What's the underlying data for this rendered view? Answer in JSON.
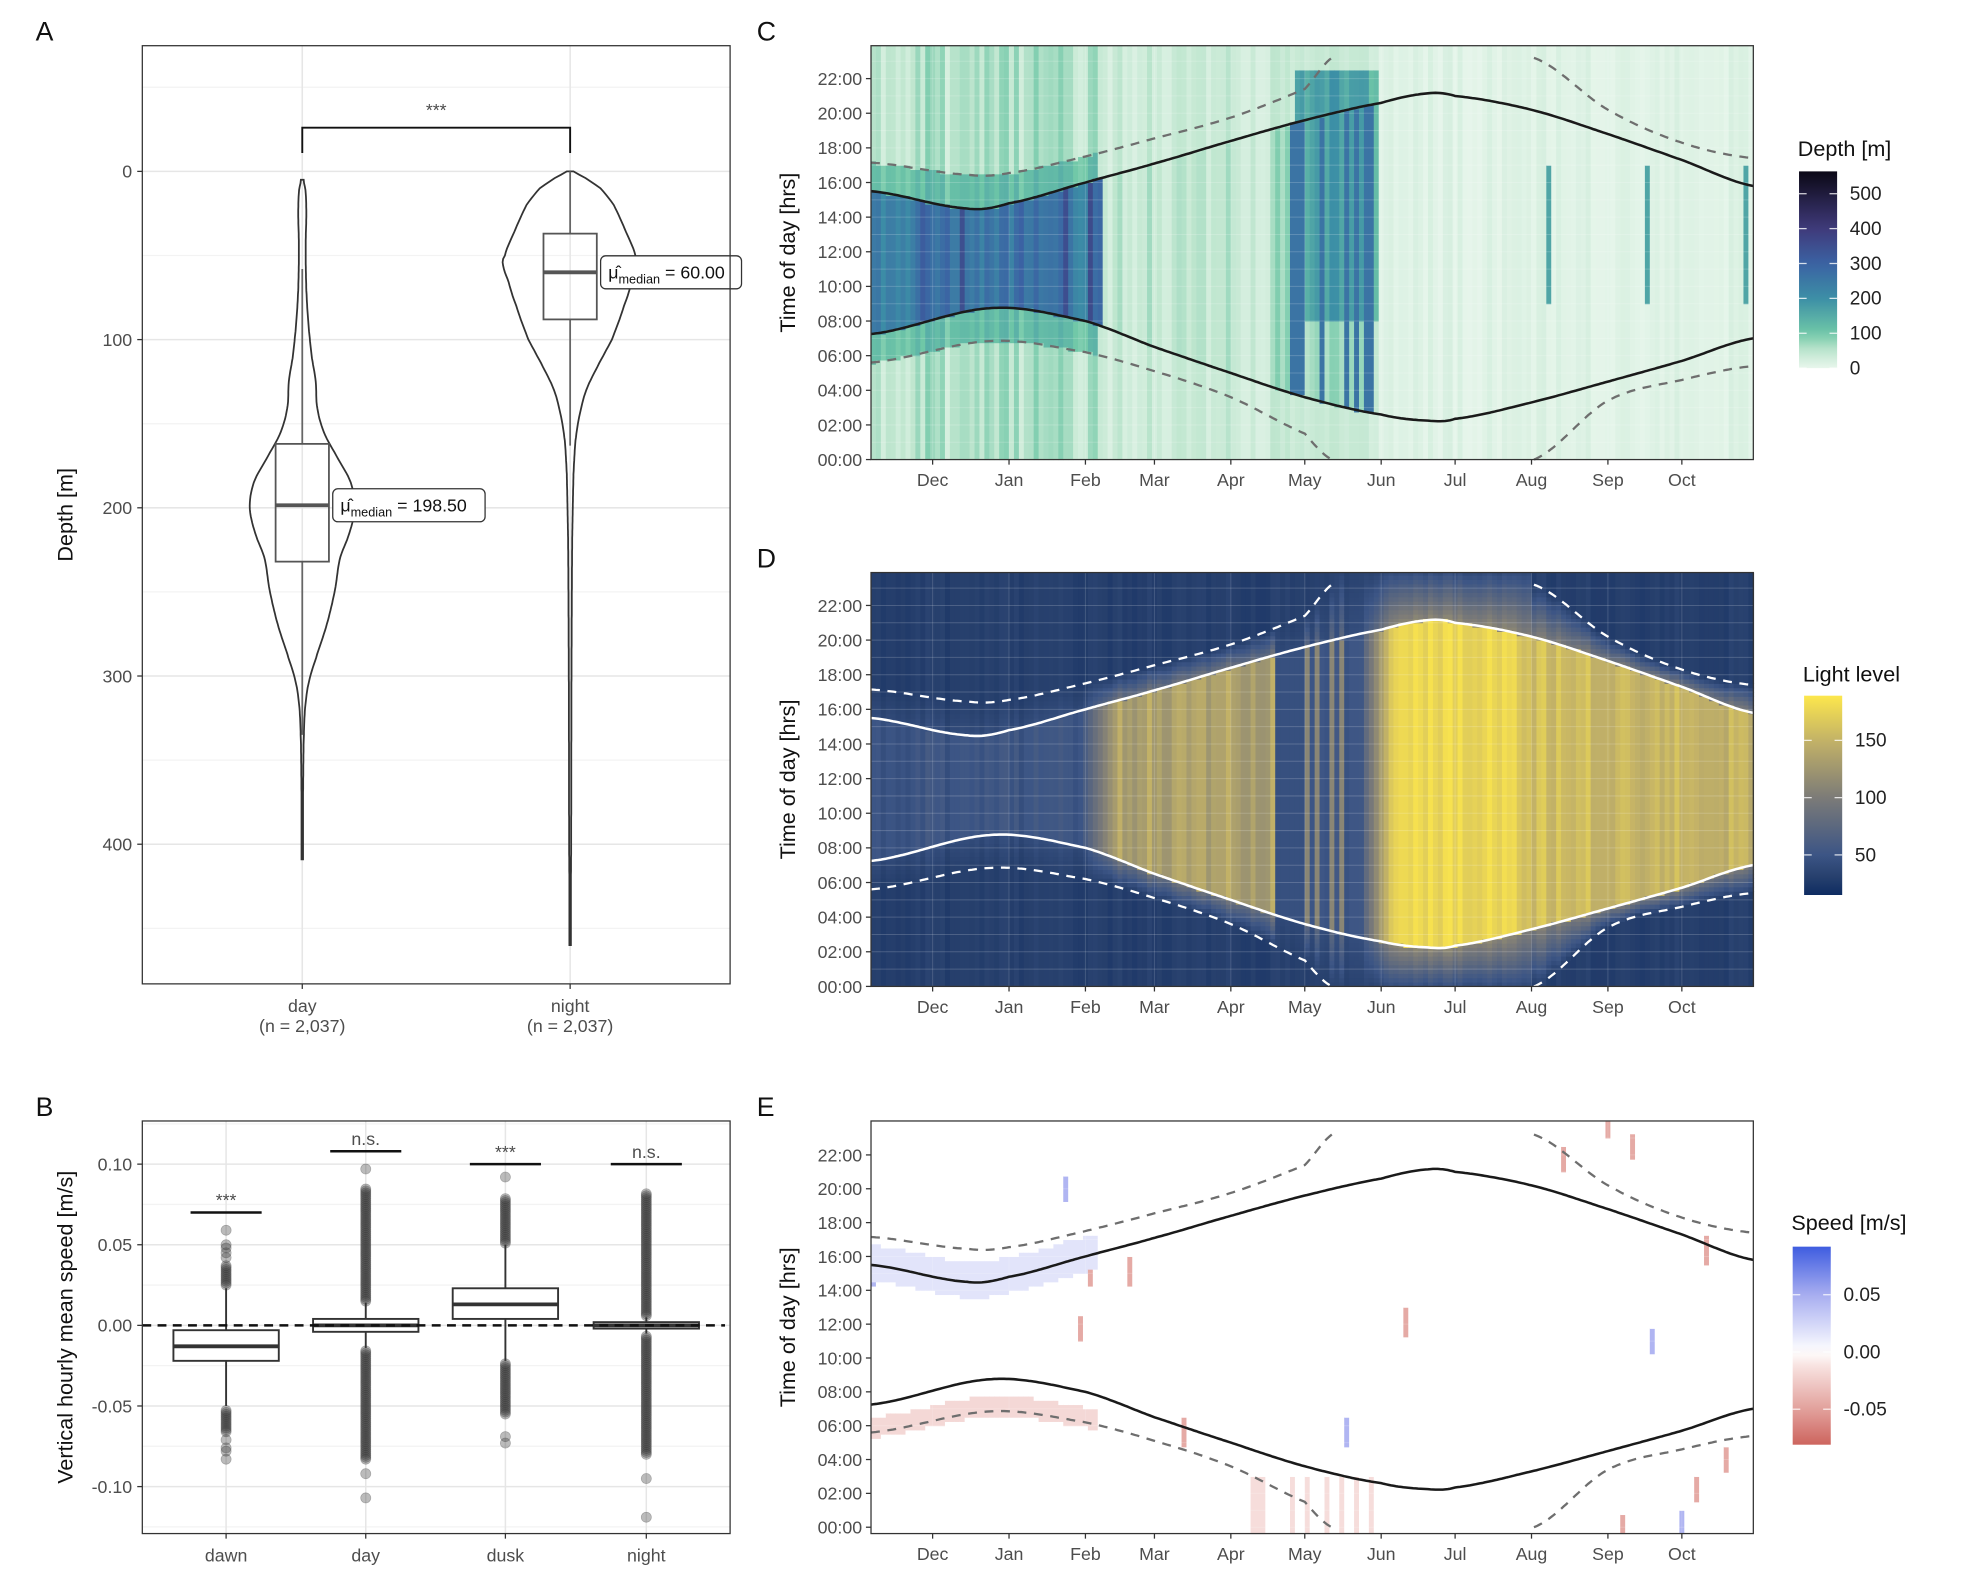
{
  "panel_labels": [
    "A",
    "B",
    "C",
    "D",
    "E"
  ],
  "sun_curves": {
    "sunset": [
      [
        "11-06",
        15.5
      ],
      [
        "12-15",
        14.5
      ],
      [
        "01-01",
        14.8
      ],
      [
        "02-01",
        16.0
      ],
      [
        "03-01",
        17.1
      ],
      [
        "04-01",
        18.4
      ],
      [
        "05-01",
        19.6
      ],
      [
        "06-01",
        20.6
      ],
      [
        "06-20",
        21.15
      ],
      [
        "07-01",
        21.0
      ],
      [
        "08-01",
        20.2
      ],
      [
        "09-01",
        18.8
      ],
      [
        "10-01",
        17.3
      ],
      [
        "10-30",
        15.8
      ]
    ],
    "sunrise": [
      [
        "11-06",
        7.25
      ],
      [
        "12-25",
        8.75
      ],
      [
        "02-01",
        8.0
      ],
      [
        "03-01",
        6.5
      ],
      [
        "04-01",
        5.0
      ],
      [
        "05-01",
        3.6
      ],
      [
        "06-01",
        2.6
      ],
      [
        "06-20",
        2.25
      ],
      [
        "07-01",
        2.35
      ],
      [
        "08-01",
        3.3
      ],
      [
        "09-01",
        4.5
      ],
      [
        "10-01",
        5.7
      ],
      [
        "10-30",
        7.0
      ]
    ],
    "dusk": [
      [
        [
          "11-06",
          17.15
        ],
        [
          "12-15",
          16.45
        ],
        [
          "01-01",
          16.55
        ],
        [
          "02-01",
          17.5
        ],
        [
          "03-01",
          18.55
        ],
        [
          "04-01",
          19.75
        ],
        [
          "05-01",
          21.4
        ],
        [
          "05-13",
          23.3
        ]
      ],
      [
        [
          "08-02",
          23.2
        ],
        [
          "09-01",
          20.2
        ],
        [
          "10-01",
          18.3
        ],
        [
          "10-30",
          17.4
        ]
      ]
    ],
    "dawn": [
      [
        [
          "11-06",
          5.6
        ],
        [
          "12-25",
          6.85
        ],
        [
          "02-01",
          6.2
        ],
        [
          "03-01",
          5.1
        ],
        [
          "04-01",
          3.6
        ],
        [
          "05-01",
          1.5
        ],
        [
          "05-12",
          0.0
        ]
      ],
      [
        [
          "08-02",
          0.0
        ],
        [
          "09-01",
          3.4
        ],
        [
          "10-01",
          4.6
        ],
        [
          "10-30",
          5.4
        ]
      ]
    ]
  },
  "chart_data": [
    {
      "panel": "A",
      "type": "violin",
      "ylabel": "Depth [m]",
      "y_reversed": true,
      "ylim": [
        -75,
        483
      ],
      "yticks": [
        "0",
        "100",
        "200",
        "300",
        "400"
      ],
      "grid": true,
      "significance": {
        "label": "***",
        "between": [
          "day",
          "night"
        ]
      },
      "groups": [
        {
          "name": "day",
          "n_label": "(n = 2,037)",
          "box": {
            "q1": 162,
            "median": 198.5,
            "q3": 232,
            "whisker_top": 58,
            "whisker_bottom": 335
          },
          "range": [
            5,
            410
          ],
          "density": [
            [
              5,
              0.02
            ],
            [
              12,
              0.05
            ],
            [
              25,
              0.06
            ],
            [
              45,
              0.05
            ],
            [
              70,
              0.06
            ],
            [
              90,
              0.09
            ],
            [
              110,
              0.14
            ],
            [
              125,
              0.2
            ],
            [
              140,
              0.22
            ],
            [
              155,
              0.32
            ],
            [
              170,
              0.52
            ],
            [
              185,
              0.72
            ],
            [
              200,
              0.78
            ],
            [
              215,
              0.7
            ],
            [
              230,
              0.56
            ],
            [
              250,
              0.48
            ],
            [
              270,
              0.36
            ],
            [
              290,
              0.2
            ],
            [
              305,
              0.09
            ],
            [
              320,
              0.04
            ],
            [
              340,
              0.02
            ],
            [
              380,
              0.01
            ],
            [
              410,
              0.005
            ]
          ],
          "median_label": {
            "symbol": "μ̂",
            "subscript": "median",
            "value": " = 198.50"
          }
        },
        {
          "name": "night",
          "n_label": "(n = 2,037)",
          "box": {
            "q1": 37,
            "median": 60,
            "q3": 88,
            "whisker_top": 0,
            "whisker_bottom": 163
          },
          "range": [
            0,
            460
          ],
          "density": [
            [
              0,
              0.05
            ],
            [
              3,
              0.2
            ],
            [
              10,
              0.45
            ],
            [
              20,
              0.65
            ],
            [
              35,
              0.82
            ],
            [
              50,
              0.97
            ],
            [
              55,
              1.0
            ],
            [
              65,
              0.92
            ],
            [
              80,
              0.8
            ],
            [
              100,
              0.62
            ],
            [
              115,
              0.42
            ],
            [
              130,
              0.24
            ],
            [
              145,
              0.14
            ],
            [
              160,
              0.08
            ],
            [
              180,
              0.05
            ],
            [
              220,
              0.03
            ],
            [
              300,
              0.02
            ],
            [
              400,
              0.015
            ],
            [
              460,
              0.005
            ]
          ],
          "median_label": {
            "symbol": "μ̂",
            "subscript": "median",
            "value": " = 60.00"
          }
        }
      ]
    },
    {
      "panel": "B",
      "type": "box",
      "ylabel": "Vertical hourly mean speed [m/s]",
      "ylim": [
        -0.128,
        0.127
      ],
      "yticks": [
        [
          "-0.10",
          -0.1
        ],
        [
          "-0.05",
          -0.05
        ],
        [
          "0.00",
          0
        ],
        [
          "0.05",
          0.05
        ],
        [
          "0.10",
          0.1
        ]
      ],
      "reference_line": {
        "value": 0,
        "style": "dashed"
      },
      "grid": true,
      "groups": [
        {
          "name": "dawn",
          "q1": -0.022,
          "median": -0.013,
          "q3": -0.003,
          "whisker_low": -0.05,
          "whisker_high": 0.023,
          "outlier_ranges": [
            [
              0.025,
              0.038
            ],
            [
              -0.066,
              -0.052
            ]
          ],
          "outliers": [
            0.042,
            0.045,
            0.048,
            0.05,
            0.059,
            -0.071,
            -0.076,
            -0.078,
            -0.083
          ],
          "significance": {
            "label": "***",
            "y": 0.07
          }
        },
        {
          "name": "day",
          "q1": -0.004,
          "median": 0.0,
          "q3": 0.004,
          "whisker_low": -0.014,
          "whisker_high": 0.014,
          "outlier_ranges": [
            [
              0.015,
              0.085
            ],
            [
              -0.083,
              -0.015
            ]
          ],
          "outliers": [
            0.097,
            -0.092,
            -0.107
          ],
          "significance": {
            "label": "n.s.",
            "y": 0.108
          }
        },
        {
          "name": "dusk",
          "q1": 0.004,
          "median": 0.013,
          "q3": 0.023,
          "whisker_low": -0.022,
          "whisker_high": 0.05,
          "outlier_ranges": [
            [
              0.051,
              0.079
            ],
            [
              -0.055,
              -0.023
            ]
          ],
          "outliers": [
            0.092,
            -0.069,
            -0.073
          ],
          "significance": {
            "label": "***",
            "y": 0.1
          }
        },
        {
          "name": "night",
          "q1": -0.002,
          "median": 0.0,
          "q3": 0.002,
          "whisker_low": -0.005,
          "whisker_high": 0.005,
          "outlier_ranges": [
            [
              0.006,
              0.082
            ],
            [
              -0.08,
              -0.006
            ]
          ],
          "outliers": [
            -0.095,
            -0.119
          ],
          "significance": {
            "label": "n.s.",
            "y": 0.1
          }
        }
      ]
    },
    {
      "panel": "C",
      "type": "heatmap",
      "ylabel": "Time of day [hrs]",
      "x_range": [
        "11-06",
        "10-30"
      ],
      "xticks": [
        [
          "Dec",
          "12-01"
        ],
        [
          "Jan",
          "01-01"
        ],
        [
          "Feb",
          "02-01"
        ],
        [
          "Mar",
          "03-01"
        ],
        [
          "Apr",
          "04-01"
        ],
        [
          "May",
          "05-01"
        ],
        [
          "Jun",
          "06-01"
        ],
        [
          "Jul",
          "07-01"
        ],
        [
          "Aug",
          "08-01"
        ],
        [
          "Sep",
          "09-01"
        ],
        [
          "Oct",
          "10-01"
        ]
      ],
      "yticks": [
        "00:00",
        "02:00",
        "04:00",
        "06:00",
        "08:00",
        "10:00",
        "12:00",
        "14:00",
        "16:00",
        "18:00",
        "20:00",
        "22:00"
      ],
      "lines": {
        "solid_color": "#1a1a1a",
        "dashed_color": "#6e6e6e"
      },
      "colorbar": {
        "title": "Depth [m]",
        "ticks": [
          [
            "0",
            0
          ],
          [
            "100",
            100
          ],
          [
            "200",
            200
          ],
          [
            "300",
            300
          ],
          [
            "400",
            400
          ],
          [
            "500",
            500
          ]
        ],
        "range": [
          0,
          564
        ],
        "stops": [
          [
            0,
            "#e8f6ec"
          ],
          [
            50,
            "#bfe6cf"
          ],
          [
            100,
            "#6fc7a7"
          ],
          [
            200,
            "#3c8fa6"
          ],
          [
            300,
            "#3b62a3"
          ],
          [
            400,
            "#3f3a7a"
          ],
          [
            564,
            "#0b0816"
          ]
        ]
      },
      "typical_values": {
        "winter_day": 250,
        "winter_night": 55,
        "spring_day": 45,
        "summer": 12
      }
    },
    {
      "panel": "D",
      "type": "heatmap",
      "ylabel": "Time of day [hrs]",
      "lines": {
        "solid_color": "#ffffff",
        "dashed_color": "#ffffff"
      },
      "colorbar": {
        "title": "Light level",
        "ticks": [
          [
            "50",
            50
          ],
          [
            "100",
            100
          ],
          [
            "150",
            150
          ]
        ],
        "range": [
          15,
          189
        ],
        "stops": [
          [
            15,
            "#0e2b62"
          ],
          [
            30,
            "#263f6c"
          ],
          [
            50,
            "#3c5585"
          ],
          [
            100,
            "#7c7b78"
          ],
          [
            150,
            "#c3b267"
          ],
          [
            189,
            "#fde74c"
          ]
        ]
      },
      "typical_values": {
        "night": 30,
        "winter_day": 50,
        "spring_day": 135,
        "summer_day": 178
      }
    },
    {
      "panel": "E",
      "type": "heatmap",
      "ylabel": "Time of day [hrs]",
      "lines": {
        "solid_color": "#1a1a1a",
        "dashed_color": "#6e6e6e"
      },
      "colorbar": {
        "title": "Speed [m/s]",
        "ticks": [
          [
            "0.05",
            0.05
          ],
          [
            "0.00",
            0
          ],
          [
            "-0.05",
            -0.05
          ]
        ],
        "range": [
          -0.081,
          0.092
        ],
        "stops": [
          [
            -0.09,
            "#c7534c"
          ],
          [
            -0.05,
            "#e2a19c"
          ],
          [
            -0.01,
            "#f9e6e4"
          ],
          [
            0,
            "#ffffff"
          ],
          [
            0.01,
            "#eceefc"
          ],
          [
            0.05,
            "#a7adf0"
          ],
          [
            0.092,
            "#3f5de0"
          ]
        ]
      },
      "typical_values": {
        "winter_dusk_ascent": 0.016,
        "winter_dawn_descent": -0.018,
        "background": 0
      }
    }
  ]
}
